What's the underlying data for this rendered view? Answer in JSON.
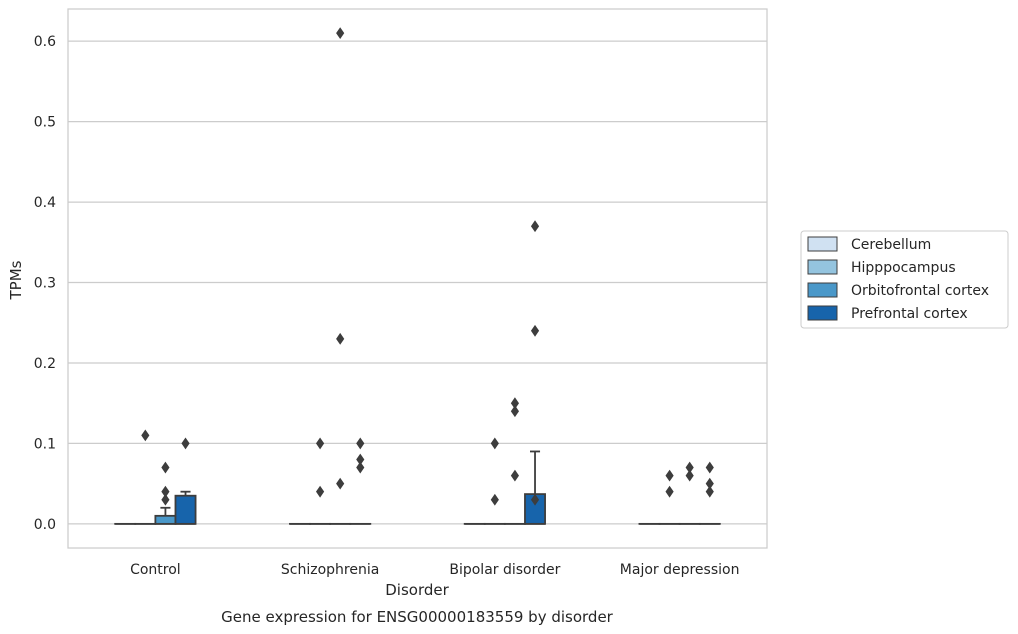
{
  "chart_data": {
    "type": "box",
    "xlabel": "Disorder",
    "ylabel": "TPMs",
    "caption": "Gene expression for ENSG00000183559 by disorder",
    "categories": [
      "Control",
      "Schizophrenia",
      "Bipolar disorder",
      "Major depression"
    ],
    "ylim": [
      -0.03,
      0.64
    ],
    "yticks": [
      0.0,
      0.1,
      0.2,
      0.3,
      0.4,
      0.5,
      0.6
    ],
    "ytick_labels": [
      "0.0",
      "0.1",
      "0.2",
      "0.3",
      "0.4",
      "0.5",
      "0.6"
    ],
    "grid": true,
    "legend_position": "right",
    "series": [
      {
        "name": "Cerebellum",
        "color": "#d0e1f2",
        "boxes": [
          {
            "q1": 0,
            "median": 0,
            "q3": 0,
            "whisker_low": 0,
            "whisker_high": 0,
            "outliers": []
          },
          {
            "q1": 0,
            "median": 0,
            "q3": 0,
            "whisker_low": 0,
            "whisker_high": 0,
            "outliers": []
          },
          {
            "q1": 0,
            "median": 0,
            "q3": 0,
            "whisker_low": 0,
            "whisker_high": 0,
            "outliers": []
          },
          {
            "q1": 0,
            "median": 0,
            "q3": 0,
            "whisker_low": 0,
            "whisker_high": 0,
            "outliers": []
          }
        ]
      },
      {
        "name": "Hipppocampus",
        "color": "#94c4df",
        "boxes": [
          {
            "q1": 0,
            "median": 0,
            "q3": 0,
            "whisker_low": 0,
            "whisker_high": 0,
            "outliers": [
              0.11
            ]
          },
          {
            "q1": 0,
            "median": 0,
            "q3": 0,
            "whisker_low": 0,
            "whisker_high": 0,
            "outliers": [
              0.04,
              0.1
            ]
          },
          {
            "q1": 0,
            "median": 0,
            "q3": 0,
            "whisker_low": 0,
            "whisker_high": 0,
            "outliers": [
              0.03,
              0.1
            ]
          },
          {
            "q1": 0,
            "median": 0,
            "q3": 0,
            "whisker_low": 0,
            "whisker_high": 0,
            "outliers": [
              0.04,
              0.06
            ]
          }
        ]
      },
      {
        "name": "Orbitofrontal cortex",
        "color": "#4a98c9",
        "boxes": [
          {
            "q1": 0,
            "median": 0,
            "q3": 0.01,
            "whisker_low": 0,
            "whisker_high": 0.02,
            "outliers": [
              0.03,
              0.04,
              0.07
            ]
          },
          {
            "q1": 0,
            "median": 0,
            "q3": 0,
            "whisker_low": 0,
            "whisker_high": 0,
            "outliers": [
              0.05,
              0.23,
              0.61
            ]
          },
          {
            "q1": 0,
            "median": 0,
            "q3": 0,
            "whisker_low": 0,
            "whisker_high": 0,
            "outliers": [
              0.06,
              0.14,
              0.15
            ]
          },
          {
            "q1": 0,
            "median": 0,
            "q3": 0,
            "whisker_low": 0,
            "whisker_high": 0,
            "outliers": [
              0.06,
              0.07
            ]
          }
        ]
      },
      {
        "name": "Prefrontal cortex",
        "color": "#1764ab",
        "boxes": [
          {
            "q1": 0,
            "median": 0,
            "q3": 0.035,
            "whisker_low": 0,
            "whisker_high": 0.04,
            "outliers": [
              0.1
            ]
          },
          {
            "q1": 0,
            "median": 0,
            "q3": 0,
            "whisker_low": 0,
            "whisker_high": 0,
            "outliers": [
              0.07,
              0.08,
              0.1
            ]
          },
          {
            "q1": 0,
            "median": 0,
            "q3": 0.037,
            "whisker_low": 0,
            "whisker_high": 0.09,
            "outliers": [
              0.03,
              0.24,
              0.37
            ]
          },
          {
            "q1": 0,
            "median": 0,
            "q3": 0,
            "whisker_low": 0,
            "whisker_high": 0,
            "outliers": [
              0.04,
              0.05,
              0.07
            ]
          }
        ]
      }
    ]
  }
}
